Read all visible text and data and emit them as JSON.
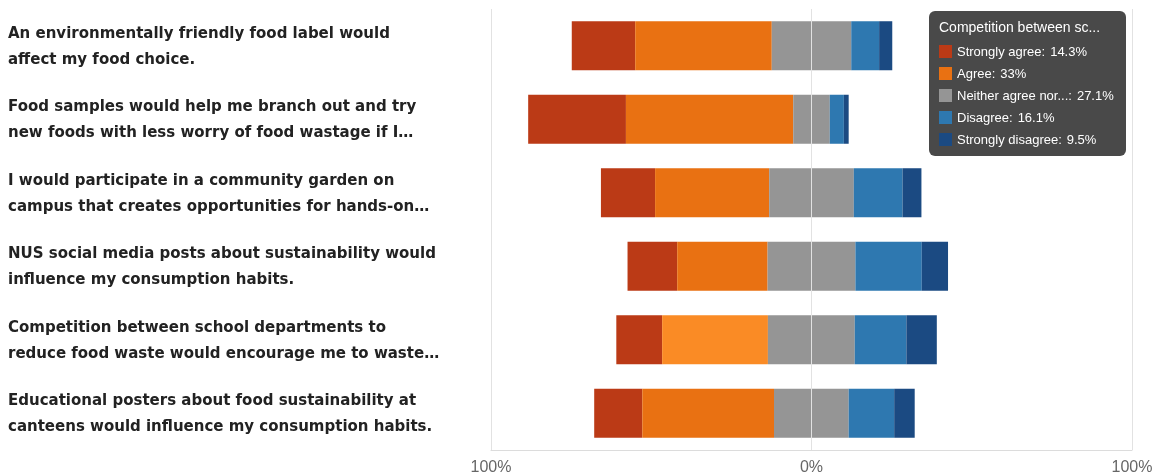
{
  "chart_data": {
    "type": "bar",
    "orientation": "horizontal",
    "categories": [
      "An environmentally friendly food label would\naffect my food choice.",
      "Food samples would help me branch out and try\nnew foods with less worry of food wastage if I…",
      "I would participate in a community garden on\ncampus that creates opportunities for hands-on…",
      "NUS social media posts about sustainability would\ninfluence my consumption habits.",
      "Competition between school departments to\nreduce food waste would encourage me to waste…",
      "Educational posters about food sustainability at\ncanteens would influence my consumption habits."
    ],
    "series": [
      {
        "name": "Strongly agree:",
        "color": "#bb3a16",
        "base": [
          -74.8,
          -88.4,
          -65.7,
          -57.4,
          -60.9,
          -67.8
        ],
        "values": [
          19.8,
          30.5,
          16.9,
          15.5,
          14.3,
          15.0
        ]
      },
      {
        "name": "Agree:",
        "color": "#e97112",
        "colors": [
          "#e97112",
          "#e97112",
          "#e97112",
          "#e97112",
          "#fa8b25",
          "#e97112"
        ],
        "base": [
          -55.0,
          -57.9,
          -48.8,
          -41.9,
          -46.6,
          -52.8
        ],
        "values": [
          42.6,
          52.2,
          35.6,
          28.2,
          33,
          41.1
        ]
      },
      {
        "name": "Neither agree nor...:",
        "color": "#959595",
        "base": [
          -12.4,
          -5.7,
          -13.2,
          -13.7,
          -13.6,
          -11.7
        ],
        "values": [
          24.8,
          11.4,
          26.4,
          27.4,
          27.1,
          23.3
        ]
      },
      {
        "name": "Disagree:",
        "color": "#2e78b0",
        "base": [
          12.4,
          5.7,
          13.2,
          13.7,
          13.5,
          11.6
        ],
        "values": [
          8.7,
          4.4,
          15.2,
          20.7,
          16.1,
          14.2
        ]
      },
      {
        "name": "Strongly disagree:",
        "color": "#1b4a82",
        "base": [
          21.1,
          10.1,
          28.4,
          34.4,
          29.6,
          25.8
        ],
        "values": [
          4.1,
          1.5,
          5.9,
          8.2,
          9.5,
          6.4
        ]
      }
    ],
    "xlim": [
      -100,
      100
    ],
    "xticks": [
      {
        "value": -100,
        "label": "100%"
      },
      {
        "value": 0,
        "label": "0%"
      },
      {
        "value": 100,
        "label": "100%"
      }
    ],
    "grid": "x",
    "legend": "top right",
    "legend_title": "Competition between sc...",
    "annotations": [
      "14.3%",
      "33%",
      "27.1%",
      "16.1%",
      "9.5%"
    ]
  }
}
